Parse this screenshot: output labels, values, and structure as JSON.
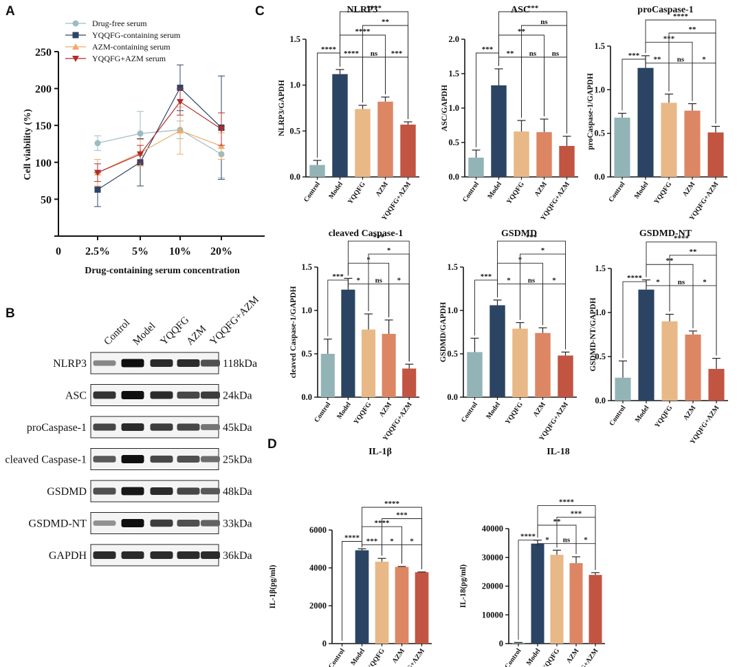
{
  "panel_letters": {
    "a": "A",
    "b": "B",
    "c": "C",
    "d": "D"
  },
  "colors": {
    "control": "#93b4b7",
    "model": "#2b4463",
    "yqqfg": "#e9b887",
    "azm": "#dd8663",
    "combo": "#c25442",
    "drugfree": "#9bbcc2",
    "yqqfg_line": "#2f4465",
    "azm_line": "#eeaa66",
    "combo_line": "#b42b2b"
  },
  "chart_data": [
    {
      "id": "A",
      "type": "line",
      "title": "",
      "xlabel": "Drug-containing serum concentration",
      "ylabel": "Cell viability (%)",
      "origin_label": "0",
      "categories": [
        "2.5%",
        "5%",
        "10%",
        "20%"
      ],
      "yticks": [
        0,
        50,
        100,
        150,
        200,
        250
      ],
      "ylim": [
        0,
        250
      ],
      "series": [
        {
          "name": "Drug-free serum",
          "marker": "circle",
          "color": "#9bbcc2",
          "values": [
            126,
            139,
            144,
            111
          ],
          "errors": [
            10,
            30,
            12,
            32
          ]
        },
        {
          "name": "YQQFG-containing serum",
          "marker": "square",
          "color": "#2f4465",
          "values": [
            63,
            100,
            201,
            147
          ],
          "errors": [
            23,
            32,
            31,
            70
          ]
        },
        {
          "name": "AZM-containing serum",
          "marker": "triangle-up",
          "color": "#eeaa66",
          "values": [
            86,
            113,
            143,
            122
          ],
          "errors": [
            18,
            18,
            32,
            18
          ]
        },
        {
          "name": "YQQFG+AZM serum",
          "marker": "triangle-down",
          "color": "#b42b2b",
          "values": [
            86,
            111,
            182,
            145
          ],
          "errors": [
            12,
            12,
            18,
            22
          ]
        }
      ]
    },
    {
      "id": "C1",
      "type": "bar",
      "title": "NLRP3",
      "ylabel": "NLRP3/GAPDH",
      "categories": [
        "Control",
        "Model",
        "YQQFG",
        "AZM",
        "YQQFG+AZM"
      ],
      "values": [
        0.13,
        1.12,
        0.74,
        0.82,
        0.57
      ],
      "errors": [
        0.05,
        0.05,
        0.04,
        0.05,
        0.03
      ],
      "yticks": [
        "0.0",
        "0.5",
        "1.0",
        "1.5"
      ],
      "ylim": [
        0,
        1.5
      ],
      "brackets": [
        {
          "from": 0,
          "to": 1,
          "label": "****"
        },
        {
          "from": 1,
          "to": 2,
          "label": "****"
        },
        {
          "from": 2,
          "to": 3,
          "label": "ns"
        },
        {
          "from": 3,
          "to": 4,
          "label": "***"
        },
        {
          "from": 1,
          "to": 3,
          "label": "****"
        },
        {
          "from": 2,
          "to": 4,
          "label": "**"
        },
        {
          "from": 1,
          "to": 4,
          "label": "****"
        }
      ]
    },
    {
      "id": "C2",
      "type": "bar",
      "title": "ASC",
      "ylabel": "ASC/GAPDH",
      "categories": [
        "Control",
        "Model",
        "YQQFG",
        "AZM",
        "YQQFG+AZM"
      ],
      "values": [
        0.28,
        1.33,
        0.66,
        0.65,
        0.45
      ],
      "errors": [
        0.11,
        0.24,
        0.16,
        0.19,
        0.14
      ],
      "yticks": [
        "0.0",
        "0.5",
        "1.0",
        "1.5",
        "2.0"
      ],
      "ylim": [
        0,
        2.0
      ],
      "brackets": [
        {
          "from": 0,
          "to": 1,
          "label": "***"
        },
        {
          "from": 1,
          "to": 2,
          "label": "**"
        },
        {
          "from": 2,
          "to": 3,
          "label": "ns"
        },
        {
          "from": 3,
          "to": 4,
          "label": "ns"
        },
        {
          "from": 1,
          "to": 3,
          "label": "**"
        },
        {
          "from": 2,
          "to": 4,
          "label": "ns"
        },
        {
          "from": 1,
          "to": 4,
          "label": "***"
        }
      ]
    },
    {
      "id": "C3",
      "type": "bar",
      "title": "proCaspase-1",
      "ylabel": "proCaspase-1/GAPDH",
      "categories": [
        "Control",
        "Model",
        "YQQFG",
        "AZM",
        "YQQFG+AZM"
      ],
      "values": [
        0.68,
        1.25,
        0.85,
        0.76,
        0.51
      ],
      "errors": [
        0.05,
        0.14,
        0.1,
        0.08,
        0.07
      ],
      "yticks": [
        "0.0",
        "0.5",
        "1.0",
        "1.5"
      ],
      "ylim": [
        0,
        1.5
      ],
      "brackets": [
        {
          "from": 0,
          "to": 1,
          "label": "***"
        },
        {
          "from": 1,
          "to": 2,
          "label": "**"
        },
        {
          "from": 2,
          "to": 3,
          "label": "ns"
        },
        {
          "from": 3,
          "to": 4,
          "label": "*"
        },
        {
          "from": 1,
          "to": 3,
          "label": "***"
        },
        {
          "from": 2,
          "to": 4,
          "label": "**"
        },
        {
          "from": 1,
          "to": 4,
          "label": "****"
        }
      ]
    },
    {
      "id": "C4",
      "type": "bar",
      "title": "cleaved Caspase-1",
      "ylabel": "cleaved Caspase-1/GAPDH",
      "categories": [
        "Control",
        "Model",
        "YQQFG",
        "AZM",
        "YQQFG+AZM"
      ],
      "values": [
        0.5,
        1.24,
        0.78,
        0.73,
        0.33
      ],
      "errors": [
        0.17,
        0.13,
        0.18,
        0.16,
        0.05
      ],
      "yticks": [
        "0.0",
        "0.5",
        "1.0",
        "1.5"
      ],
      "ylim": [
        0,
        1.5
      ],
      "brackets": [
        {
          "from": 0,
          "to": 1,
          "label": "***"
        },
        {
          "from": 1,
          "to": 2,
          "label": "*"
        },
        {
          "from": 2,
          "to": 3,
          "label": "ns"
        },
        {
          "from": 3,
          "to": 4,
          "label": "*"
        },
        {
          "from": 1,
          "to": 3,
          "label": "*"
        },
        {
          "from": 2,
          "to": 4,
          "label": "*"
        },
        {
          "from": 1,
          "to": 4,
          "label": "***"
        }
      ]
    },
    {
      "id": "C5",
      "type": "bar",
      "title": "GSDMD",
      "ylabel": "GSDMD/GAPDH",
      "categories": [
        "Control",
        "Model",
        "YQQFG",
        "AZM",
        "YQQFG+AZM"
      ],
      "values": [
        0.52,
        1.06,
        0.79,
        0.74,
        0.48
      ],
      "errors": [
        0.16,
        0.06,
        0.07,
        0.06,
        0.04
      ],
      "yticks": [
        "0.0",
        "0.5",
        "1.0",
        "1.5"
      ],
      "ylim": [
        0,
        1.5
      ],
      "brackets": [
        {
          "from": 0,
          "to": 1,
          "label": "***"
        },
        {
          "from": 1,
          "to": 2,
          "label": "*"
        },
        {
          "from": 2,
          "to": 3,
          "label": "ns"
        },
        {
          "from": 3,
          "to": 4,
          "label": "*"
        },
        {
          "from": 1,
          "to": 3,
          "label": "*"
        },
        {
          "from": 2,
          "to": 4,
          "label": "*"
        },
        {
          "from": 1,
          "to": 4,
          "label": "***"
        }
      ]
    },
    {
      "id": "C6",
      "type": "bar",
      "title": "GSDMD-NT",
      "ylabel": "GSDMD-NT/GAPDH",
      "categories": [
        "Control",
        "Model",
        "YQQFG",
        "AZM",
        "YQQFG+AZM"
      ],
      "values": [
        0.26,
        1.26,
        0.9,
        0.75,
        0.36
      ],
      "errors": [
        0.19,
        0.11,
        0.08,
        0.04,
        0.12
      ],
      "yticks": [
        "0.0",
        "0.5",
        "1.0",
        "1.5"
      ],
      "ylim": [
        0,
        1.5
      ],
      "brackets": [
        {
          "from": 0,
          "to": 1,
          "label": "****"
        },
        {
          "from": 1,
          "to": 2,
          "label": "*"
        },
        {
          "from": 2,
          "to": 3,
          "label": "ns"
        },
        {
          "from": 3,
          "to": 4,
          "label": "*"
        },
        {
          "from": 1,
          "to": 3,
          "label": "**"
        },
        {
          "from": 2,
          "to": 4,
          "label": "**"
        },
        {
          "from": 1,
          "to": 4,
          "label": "****"
        }
      ]
    },
    {
      "id": "D1",
      "type": "bar",
      "title": "IL-1β",
      "ylabel": "IL-1β(pg/ml)",
      "categories": [
        "Control",
        "Model",
        "YQQFG",
        "AZM",
        "YQQFG+AZM"
      ],
      "values": [
        0,
        4930,
        4330,
        4050,
        3770
      ],
      "errors": [
        0,
        80,
        170,
        25,
        15
      ],
      "yticks": [
        "0",
        "2000",
        "4000",
        "6000"
      ],
      "ylim": [
        0,
        6000
      ],
      "brackets": [
        {
          "from": 0,
          "to": 1,
          "label": "****"
        },
        {
          "from": 1,
          "to": 2,
          "label": "***"
        },
        {
          "from": 2,
          "to": 3,
          "label": "*"
        },
        {
          "from": 3,
          "to": 4,
          "label": "*"
        },
        {
          "from": 1,
          "to": 3,
          "label": "****"
        },
        {
          "from": 2,
          "to": 4,
          "label": "***"
        },
        {
          "from": 1,
          "to": 4,
          "label": "****"
        }
      ]
    },
    {
      "id": "D2",
      "type": "bar",
      "title": "IL-18",
      "ylabel": "IL-18(pg/ml)",
      "categories": [
        "Control",
        "Model",
        "YQQFG",
        "AZM",
        "YQQFG+AZM"
      ],
      "values": [
        300,
        34800,
        30900,
        28000,
        23900
      ],
      "errors": [
        100,
        1200,
        1600,
        2200,
        800
      ],
      "yticks": [
        "0",
        "10000",
        "20000",
        "30000",
        "40000"
      ],
      "ylim": [
        0,
        40000
      ],
      "brackets": [
        {
          "from": 0,
          "to": 1,
          "label": "****"
        },
        {
          "from": 1,
          "to": 2,
          "label": "*"
        },
        {
          "from": 2,
          "to": 3,
          "label": "ns"
        },
        {
          "from": 3,
          "to": 4,
          "label": "*"
        },
        {
          "from": 1,
          "to": 3,
          "label": "**"
        },
        {
          "from": 2,
          "to": 4,
          "label": "***"
        },
        {
          "from": 1,
          "to": 4,
          "label": "****"
        }
      ]
    }
  ],
  "western_blot": {
    "lanes": [
      "Control",
      "Model",
      "YQQFG",
      "AZM",
      "YQQFG+AZM"
    ],
    "rows": [
      {
        "protein": "NLRP3",
        "size": "118kDa",
        "intensities": [
          0.35,
          1.0,
          0.85,
          0.85,
          0.65
        ]
      },
      {
        "protein": "ASC",
        "size": "24kDa",
        "intensities": [
          0.8,
          1.0,
          0.85,
          0.7,
          0.75
        ]
      },
      {
        "protein": "proCaspase-1",
        "size": "45kDa",
        "intensities": [
          0.7,
          0.85,
          0.75,
          0.7,
          0.45
        ]
      },
      {
        "protein": "cleaved Caspase-1",
        "size": "25kDa",
        "intensities": [
          0.6,
          1.0,
          0.7,
          0.65,
          0.5
        ]
      },
      {
        "protein": "GSDMD",
        "size": "48kDa",
        "intensities": [
          0.65,
          0.95,
          0.85,
          0.7,
          0.6
        ]
      },
      {
        "protein": "GSDMD-NT",
        "size": "33kDa",
        "intensities": [
          0.3,
          1.0,
          0.75,
          0.65,
          0.55
        ]
      },
      {
        "protein": "GAPDH",
        "size": "36kDa",
        "intensities": [
          0.85,
          0.85,
          0.85,
          0.85,
          0.85
        ]
      }
    ]
  }
}
